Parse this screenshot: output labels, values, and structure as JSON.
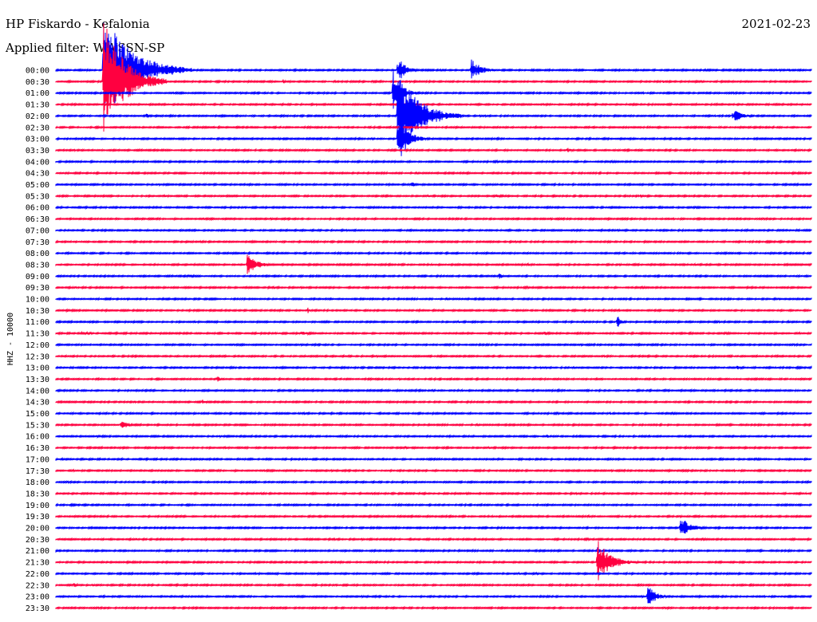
{
  "header": {
    "station": "HP Fiskardo - Kefalonia",
    "date": "2021-02-23",
    "filter": "Applied filter: WWSSN-SP"
  },
  "chart_data": {
    "type": "line",
    "title": "HP Fiskardo - Kefalonia",
    "ylabel": "HHZ - 10000",
    "x_span_minutes": 30,
    "grid": false,
    "colors": {
      "even": "#0000ff",
      "odd": "#ff0040"
    },
    "rows": [
      "00:00",
      "00:30",
      "01:00",
      "01:30",
      "02:00",
      "02:30",
      "03:00",
      "03:30",
      "04:00",
      "04:30",
      "05:00",
      "05:30",
      "06:00",
      "06:30",
      "07:00",
      "07:30",
      "08:00",
      "08:30",
      "09:00",
      "09:30",
      "10:00",
      "10:30",
      "11:00",
      "11:30",
      "12:00",
      "12:30",
      "13:00",
      "13:30",
      "14:00",
      "14:30",
      "15:00",
      "15:30",
      "16:00",
      "16:30",
      "17:00",
      "17:30",
      "18:00",
      "18:30",
      "19:00",
      "19:30",
      "20:00",
      "20:30",
      "21:00",
      "21:30",
      "22:00",
      "22:30",
      "23:00",
      "23:30"
    ],
    "events": [
      {
        "row": 0,
        "minute": 13.6,
        "amp": 1.9,
        "dur": 0.9
      },
      {
        "row": 0,
        "minute": 1.9,
        "amp": 8.0,
        "dur": 3.5
      },
      {
        "row": 0,
        "minute": 16.5,
        "amp": 1.6,
        "dur": 1.2
      },
      {
        "row": 0,
        "minute": 29.1,
        "amp": 0.3,
        "dur": 0.3
      },
      {
        "row": 1,
        "minute": 1.9,
        "amp": 9.0,
        "dur": 2.5
      },
      {
        "row": 1,
        "minute": 3.5,
        "amp": 0.4,
        "dur": 0.4
      },
      {
        "row": 1,
        "minute": 9.0,
        "amp": 0.4,
        "dur": 0.4
      },
      {
        "row": 1,
        "minute": 12.6,
        "amp": 0.3,
        "dur": 0.2
      },
      {
        "row": 1,
        "minute": 24.1,
        "amp": 0.3,
        "dur": 0.2
      },
      {
        "row": 2,
        "minute": 13.4,
        "amp": 3.5,
        "dur": 1.0
      },
      {
        "row": 4,
        "minute": 13.6,
        "amp": 6.5,
        "dur": 2.5
      },
      {
        "row": 4,
        "minute": 3.6,
        "amp": 0.4,
        "dur": 0.4
      },
      {
        "row": 4,
        "minute": 26.9,
        "amp": 1.0,
        "dur": 1.0
      },
      {
        "row": 6,
        "minute": 13.6,
        "amp": 3.5,
        "dur": 1.2
      },
      {
        "row": 7,
        "minute": 20.3,
        "amp": 0.4,
        "dur": 0.6
      },
      {
        "row": 10,
        "minute": 14.1,
        "amp": 0.4,
        "dur": 0.7
      },
      {
        "row": 11,
        "minute": 17.5,
        "amp": 0.3,
        "dur": 0.8
      },
      {
        "row": 11,
        "minute": 23.2,
        "amp": 0.3,
        "dur": 0.3
      },
      {
        "row": 17,
        "minute": 7.6,
        "amp": 1.5,
        "dur": 1.2
      },
      {
        "row": 18,
        "minute": 5.3,
        "amp": 0.4,
        "dur": 0.5
      },
      {
        "row": 18,
        "minute": 17.6,
        "amp": 0.4,
        "dur": 0.5
      },
      {
        "row": 21,
        "minute": 10.0,
        "amp": 0.5,
        "dur": 0.2
      },
      {
        "row": 22,
        "minute": 22.3,
        "amp": 1.1,
        "dur": 0.4
      },
      {
        "row": 22,
        "minute": 26.3,
        "amp": 0.3,
        "dur": 0.2
      },
      {
        "row": 23,
        "minute": 1.0,
        "amp": 0.3,
        "dur": 1.5
      },
      {
        "row": 23,
        "minute": 9.7,
        "amp": 0.3,
        "dur": 1.5
      },
      {
        "row": 23,
        "minute": 19.4,
        "amp": 0.3,
        "dur": 0.6
      },
      {
        "row": 26,
        "minute": 27.0,
        "amp": 0.3,
        "dur": 1.2
      },
      {
        "row": 27,
        "minute": 6.4,
        "amp": 0.6,
        "dur": 0.3
      },
      {
        "row": 29,
        "minute": 5.8,
        "amp": 0.4,
        "dur": 0.6
      },
      {
        "row": 30,
        "minute": 22.0,
        "amp": 0.3,
        "dur": 0.3
      },
      {
        "row": 31,
        "minute": 2.6,
        "amp": 0.9,
        "dur": 0.8
      },
      {
        "row": 32,
        "minute": 19.5,
        "amp": 0.3,
        "dur": 0.3
      },
      {
        "row": 33,
        "minute": 13.9,
        "amp": 0.3,
        "dur": 0.2
      },
      {
        "row": 40,
        "minute": 24.8,
        "amp": 1.6,
        "dur": 1.3
      },
      {
        "row": 42,
        "minute": 21.5,
        "amp": 1.0,
        "dur": 0.3
      },
      {
        "row": 43,
        "minute": 21.5,
        "amp": 3.2,
        "dur": 1.6
      },
      {
        "row": 44,
        "minute": 19.1,
        "amp": 0.3,
        "dur": 0.2
      },
      {
        "row": 45,
        "minute": 0.7,
        "amp": 0.4,
        "dur": 0.4
      },
      {
        "row": 46,
        "minute": 23.5,
        "amp": 1.6,
        "dur": 1.0
      }
    ]
  }
}
